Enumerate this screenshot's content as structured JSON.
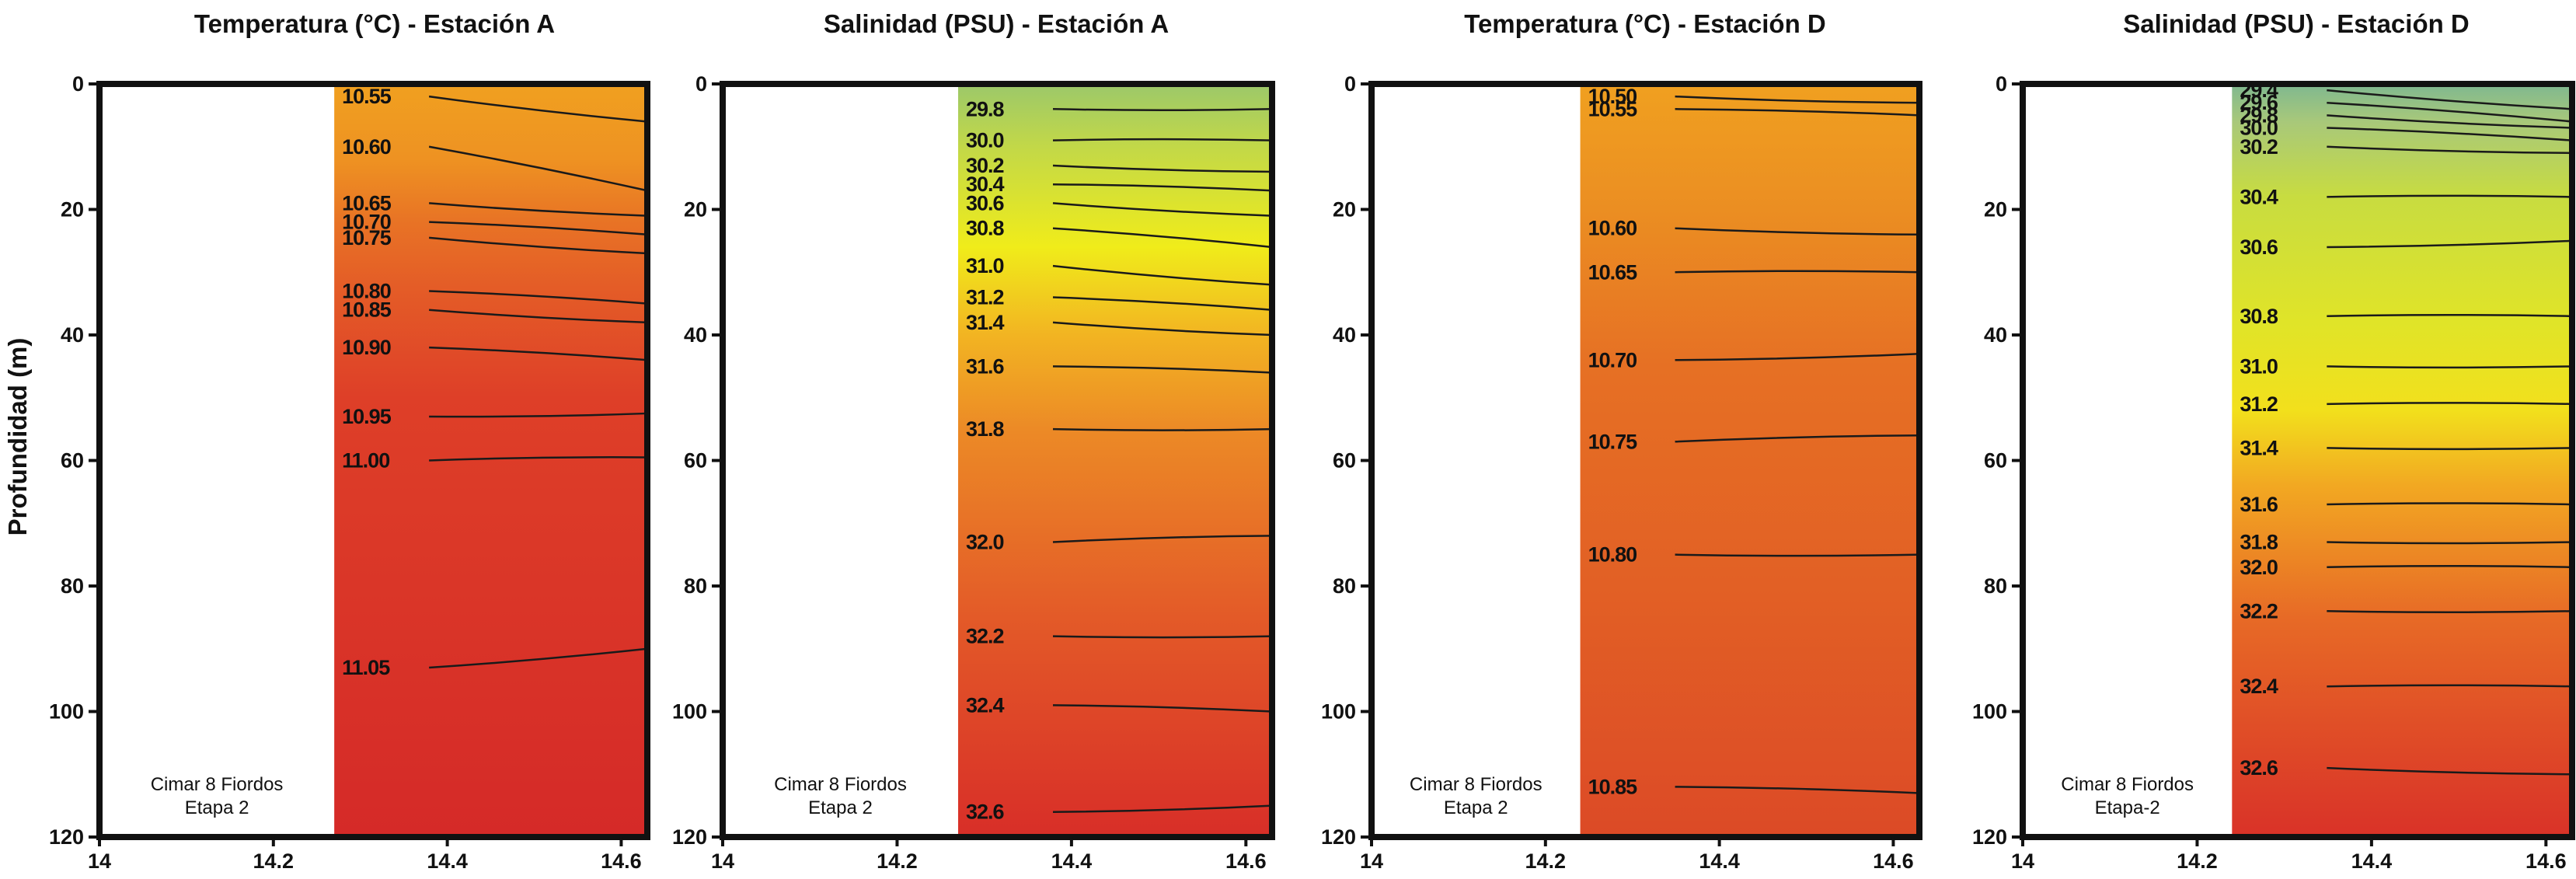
{
  "figure": {
    "y_axis_title": "Profundidad (m)",
    "note_lines": [
      "Cimar 8 Fiordos",
      "Etapa 2"
    ],
    "note_lines_alt": [
      "Cimar 8 Fiordos",
      "Etapa-2"
    ]
  },
  "chart_data": [
    {
      "type": "heatmap",
      "title": "Temperatura (°C) - Estación A",
      "xlabel": "",
      "ylabel": "Profundidad (m)",
      "xlim": [
        14,
        14.63
      ],
      "ylim": [
        120,
        0
      ],
      "x_ticks": [
        "14",
        "14.2",
        "14.4",
        "14.6"
      ],
      "y_ticks": [
        "0",
        "20",
        "40",
        "60",
        "80",
        "100",
        "120"
      ],
      "data_x_start": 14.27,
      "note": [
        "Cimar 8 Fiordos",
        "Etapa 2"
      ],
      "color_stops": [
        {
          "depth": 0,
          "color": "#f0a020"
        },
        {
          "depth": 12,
          "color": "#ee9222"
        },
        {
          "depth": 22,
          "color": "#e87325"
        },
        {
          "depth": 32,
          "color": "#e45d27"
        },
        {
          "depth": 50,
          "color": "#de3f28"
        },
        {
          "depth": 120,
          "color": "#d52a28"
        }
      ],
      "contours": [
        {
          "label": "10.55",
          "depth_left": 2,
          "depth_right": 6
        },
        {
          "label": "10.60",
          "depth_left": 10,
          "depth_right": 17
        },
        {
          "label": "10.65",
          "depth_left": 19,
          "depth_right": 21
        },
        {
          "label": "10.70",
          "depth_left": 22,
          "depth_right": 24
        },
        {
          "label": "10.75",
          "depth_left": 24.5,
          "depth_right": 27
        },
        {
          "label": "10.80",
          "depth_left": 33,
          "depth_right": 35
        },
        {
          "label": "10.85",
          "depth_left": 36,
          "depth_right": 38
        },
        {
          "label": "10.90",
          "depth_left": 42,
          "depth_right": 44
        },
        {
          "label": "10.95",
          "depth_left": 53,
          "depth_right": 52.5
        },
        {
          "label": "11.00",
          "depth_left": 60,
          "depth_right": 59.5
        },
        {
          "label": "11.05",
          "depth_left": 93,
          "depth_right": 90
        }
      ]
    },
    {
      "type": "heatmap",
      "title": "Salinidad (PSU) - Estación A",
      "xlabel": "",
      "ylabel": "",
      "xlim": [
        14,
        14.63
      ],
      "ylim": [
        120,
        0
      ],
      "x_ticks": [
        "14",
        "14.2",
        "14.4",
        "14.6"
      ],
      "y_ticks": [
        "0",
        "20",
        "40",
        "60",
        "80",
        "100",
        "120"
      ],
      "data_x_start": 14.27,
      "note": [
        "Cimar 8 Fiordos",
        "Etapa 2"
      ],
      "color_stops": [
        {
          "depth": 0,
          "color": "#9cc86a"
        },
        {
          "depth": 10,
          "color": "#c2d848"
        },
        {
          "depth": 26,
          "color": "#f0ec1a"
        },
        {
          "depth": 40,
          "color": "#f2b422"
        },
        {
          "depth": 55,
          "color": "#ec8a26"
        },
        {
          "depth": 85,
          "color": "#e35a28"
        },
        {
          "depth": 120,
          "color": "#d82e28"
        }
      ],
      "contours": [
        {
          "label": "29.8",
          "depth_left": 4,
          "depth_right": 4
        },
        {
          "label": "30.0",
          "depth_left": 9,
          "depth_right": 9
        },
        {
          "label": "30.2",
          "depth_left": 13,
          "depth_right": 14
        },
        {
          "label": "30.4",
          "depth_left": 16,
          "depth_right": 17
        },
        {
          "label": "30.6",
          "depth_left": 19,
          "depth_right": 21
        },
        {
          "label": "30.8",
          "depth_left": 23,
          "depth_right": 26
        },
        {
          "label": "31.0",
          "depth_left": 29,
          "depth_right": 32
        },
        {
          "label": "31.2",
          "depth_left": 34,
          "depth_right": 36
        },
        {
          "label": "31.4",
          "depth_left": 38,
          "depth_right": 40
        },
        {
          "label": "31.6",
          "depth_left": 45,
          "depth_right": 46
        },
        {
          "label": "31.8",
          "depth_left": 55,
          "depth_right": 55
        },
        {
          "label": "32.0",
          "depth_left": 73,
          "depth_right": 72
        },
        {
          "label": "32.2",
          "depth_left": 88,
          "depth_right": 88
        },
        {
          "label": "32.4",
          "depth_left": 99,
          "depth_right": 100
        },
        {
          "label": "32.6",
          "depth_left": 116,
          "depth_right": 115
        }
      ]
    },
    {
      "type": "heatmap",
      "title": "Temperatura (°C) - Estación D",
      "xlabel": "",
      "ylabel": "",
      "xlim": [
        14,
        14.63
      ],
      "ylim": [
        120,
        0
      ],
      "x_ticks": [
        "14",
        "14.2",
        "14.4",
        "14.6"
      ],
      "y_ticks": [
        "0",
        "20",
        "40",
        "60",
        "80",
        "100",
        "120"
      ],
      "data_x_start": 14.24,
      "note": [
        "Cimar 8 Fiordos",
        "Etapa 2"
      ],
      "color_stops": [
        {
          "depth": 0,
          "color": "#f0a020"
        },
        {
          "depth": 20,
          "color": "#eb8e22"
        },
        {
          "depth": 45,
          "color": "#e67024"
        },
        {
          "depth": 80,
          "color": "#e26025"
        },
        {
          "depth": 120,
          "color": "#dc4a26"
        }
      ],
      "contours": [
        {
          "label": "10.50",
          "depth_left": 2,
          "depth_right": 3
        },
        {
          "label": "10.55",
          "depth_left": 4,
          "depth_right": 5
        },
        {
          "label": "10.60",
          "depth_left": 23,
          "depth_right": 24
        },
        {
          "label": "10.65",
          "depth_left": 30,
          "depth_right": 30
        },
        {
          "label": "10.70",
          "depth_left": 44,
          "depth_right": 43
        },
        {
          "label": "10.75",
          "depth_left": 57,
          "depth_right": 56
        },
        {
          "label": "10.80",
          "depth_left": 75,
          "depth_right": 75
        },
        {
          "label": "10.85",
          "depth_left": 112,
          "depth_right": 113
        }
      ]
    },
    {
      "type": "heatmap",
      "title": "Salinidad (PSU) - Estación D",
      "xlabel": "",
      "ylabel": "",
      "xlim": [
        14,
        14.63
      ],
      "ylim": [
        120,
        0
      ],
      "x_ticks": [
        "14",
        "14.2",
        "14.4",
        "14.6"
      ],
      "y_ticks": [
        "0",
        "20",
        "40",
        "60",
        "80",
        "100",
        "120"
      ],
      "data_x_start": 14.24,
      "note": [
        "Cimar 8 Fiordos",
        "Etapa-2"
      ],
      "color_stops": [
        {
          "depth": 0,
          "color": "#7fb890"
        },
        {
          "depth": 6,
          "color": "#a8c87a"
        },
        {
          "depth": 18,
          "color": "#c8dc40"
        },
        {
          "depth": 38,
          "color": "#e0e428"
        },
        {
          "depth": 52,
          "color": "#f2e01c"
        },
        {
          "depth": 64,
          "color": "#f2a822"
        },
        {
          "depth": 85,
          "color": "#e76a26"
        },
        {
          "depth": 120,
          "color": "#d93228"
        }
      ],
      "contours": [
        {
          "label": "29.4",
          "depth_left": 1,
          "depth_right": 4
        },
        {
          "label": "29.6",
          "depth_left": 3,
          "depth_right": 6
        },
        {
          "label": "29.8",
          "depth_left": 5,
          "depth_right": 7
        },
        {
          "label": "30.0",
          "depth_left": 7,
          "depth_right": 9
        },
        {
          "label": "30.2",
          "depth_left": 10,
          "depth_right": 11
        },
        {
          "label": "30.4",
          "depth_left": 18,
          "depth_right": 18
        },
        {
          "label": "30.6",
          "depth_left": 26,
          "depth_right": 25
        },
        {
          "label": "30.8",
          "depth_left": 37,
          "depth_right": 37
        },
        {
          "label": "31.0",
          "depth_left": 45,
          "depth_right": 45
        },
        {
          "label": "31.2",
          "depth_left": 51,
          "depth_right": 51
        },
        {
          "label": "31.4",
          "depth_left": 58,
          "depth_right": 58
        },
        {
          "label": "31.6",
          "depth_left": 67,
          "depth_right": 67
        },
        {
          "label": "31.8",
          "depth_left": 73,
          "depth_right": 73
        },
        {
          "label": "32.0",
          "depth_left": 77,
          "depth_right": 77
        },
        {
          "label": "32.2",
          "depth_left": 84,
          "depth_right": 84
        },
        {
          "label": "32.4",
          "depth_left": 96,
          "depth_right": 96
        },
        {
          "label": "32.6",
          "depth_left": 109,
          "depth_right": 110
        }
      ]
    }
  ]
}
